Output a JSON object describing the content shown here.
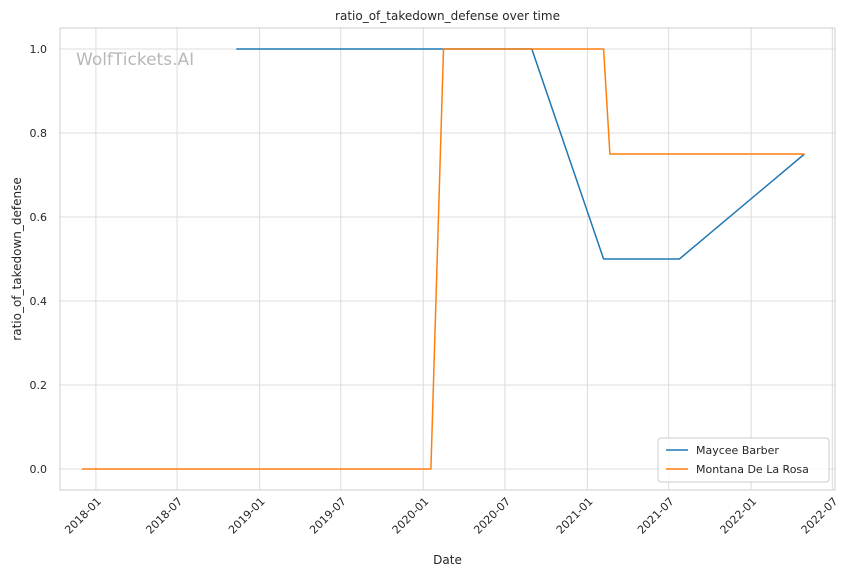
{
  "watermark": "WolfTickets.AI",
  "chart_data": {
    "type": "line",
    "title": "ratio_of_takedown_defense over time",
    "xlabel": "Date",
    "ylabel": "ratio_of_takedown_defense",
    "x_ticks": [
      "2018-01",
      "2018-07",
      "2019-01",
      "2019-07",
      "2020-01",
      "2020-07",
      "2021-01",
      "2021-07",
      "2022-01",
      "2022-07"
    ],
    "y_ticks": [
      "0.0",
      "0.2",
      "0.4",
      "0.6",
      "0.8",
      "1.0"
    ],
    "ylim": [
      -0.05,
      1.05
    ],
    "xlim": [
      "2017-10-13",
      "2022-07-07"
    ],
    "grid": true,
    "legend_position": "lower-right",
    "series": [
      {
        "name": "Maycee Barber",
        "color": "#1f77b4",
        "points": [
          {
            "x": "2018-11-10",
            "y": 1.0
          },
          {
            "x": "2020-08-30",
            "y": 1.0
          },
          {
            "x": "2021-02-06",
            "y": 0.5
          },
          {
            "x": "2021-07-25",
            "y": 0.5
          },
          {
            "x": "2022-04-30",
            "y": 0.75
          }
        ]
      },
      {
        "name": "Montana De La Rosa",
        "color": "#ff7f0e",
        "points": [
          {
            "x": "2017-12-01",
            "y": 0.0
          },
          {
            "x": "2020-01-18",
            "y": 0.0
          },
          {
            "x": "2020-02-15",
            "y": 1.0
          },
          {
            "x": "2021-02-06",
            "y": 1.0
          },
          {
            "x": "2021-02-20",
            "y": 0.75
          },
          {
            "x": "2022-04-30",
            "y": 0.75
          }
        ]
      }
    ]
  }
}
